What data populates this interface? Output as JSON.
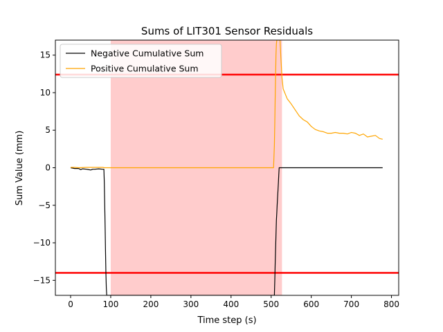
{
  "chart_data": {
    "type": "line",
    "title": "Sums of LIT301 Sensor Residuals",
    "xlabel": "Time step (s)",
    "ylabel": "Sum Value (mm)",
    "xlim": [
      -38,
      818
    ],
    "ylim": [
      -17,
      17
    ],
    "xticks": [
      0,
      100,
      200,
      300,
      400,
      500,
      600,
      700,
      800
    ],
    "yticks": [
      -15,
      -10,
      -5,
      0,
      5,
      10,
      15
    ],
    "xtick_labels": [
      "0",
      "100",
      "200",
      "300",
      "400",
      "500",
      "600",
      "700",
      "800"
    ],
    "ytick_labels": [
      "−15",
      "−10",
      "−5",
      "0",
      "5",
      "10",
      "15"
    ],
    "grid": false,
    "legend_position": "upper-left",
    "shaded_region": {
      "x_start": 100,
      "x_end": 527,
      "color": "#ffcccc"
    },
    "thresholds": [
      {
        "y": 12.4,
        "color": "#ff0000"
      },
      {
        "y": -14.0,
        "color": "#ff0000"
      }
    ],
    "series": [
      {
        "name": "Negative Cumulative Sum",
        "color": "#000000",
        "x": [
          0,
          10,
          20,
          25,
          30,
          40,
          50,
          55,
          60,
          70,
          80,
          83,
          84,
          85,
          86,
          87,
          88,
          89,
          90,
          508,
          509,
          510,
          511,
          512,
          513,
          514,
          515,
          516,
          517,
          518,
          519,
          520,
          530,
          600,
          700,
          778
        ],
        "y": [
          0,
          -0.1,
          -0.1,
          -0.25,
          -0.15,
          -0.2,
          -0.3,
          -0.2,
          -0.2,
          -0.15,
          -0.2,
          -0.2,
          -2,
          -5,
          -8,
          -11,
          -14,
          -16,
          -17,
          -17,
          -15,
          -13,
          -11,
          -9,
          -7,
          -6,
          -5,
          -4,
          -3,
          -2,
          -1,
          0,
          0,
          0,
          0,
          0
        ]
      },
      {
        "name": "Positive Cumulative Sum",
        "color": "#ffa500",
        "x": [
          0,
          10,
          20,
          40,
          60,
          80,
          84,
          100,
          200,
          300,
          400,
          500,
          506,
          508,
          509,
          510,
          511,
          512,
          513,
          514,
          515,
          516,
          517,
          518,
          519,
          520,
          521,
          522,
          523,
          524,
          525,
          526,
          527,
          530,
          540,
          550,
          560,
          570,
          580,
          590,
          600,
          610,
          620,
          630,
          640,
          650,
          660,
          670,
          680,
          690,
          700,
          710,
          720,
          730,
          740,
          750,
          760,
          770,
          778
        ],
        "y": [
          0.05,
          0.05,
          0.0,
          0.05,
          0.05,
          0.05,
          0.0,
          0.0,
          0.0,
          0.0,
          0.0,
          0.0,
          0.0,
          3,
          6,
          9,
          12,
          15,
          16.5,
          17,
          17,
          17,
          17,
          17,
          17,
          17,
          17,
          17,
          16,
          15,
          14,
          13,
          12,
          10.5,
          9.2,
          8.5,
          7.7,
          6.9,
          6.4,
          6.1,
          5.5,
          5.1,
          4.9,
          4.8,
          4.6,
          4.6,
          4.7,
          4.6,
          4.6,
          4.5,
          4.7,
          4.6,
          4.3,
          4.5,
          4.1,
          4.2,
          4.3,
          3.9,
          3.8
        ]
      }
    ]
  }
}
